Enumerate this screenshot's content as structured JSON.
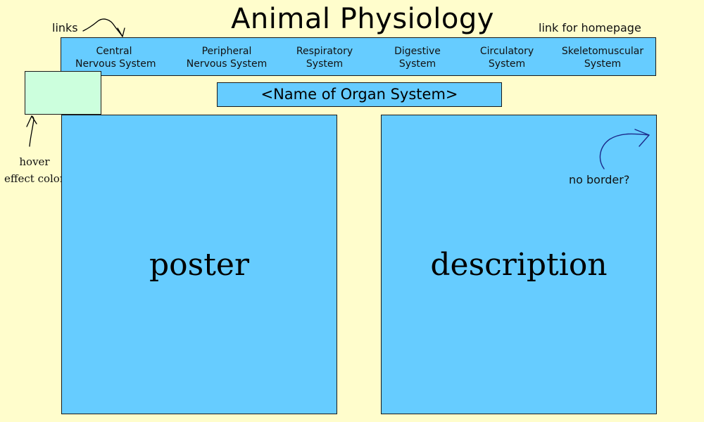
{
  "header": {
    "title": "Animal Physiology"
  },
  "annotations": {
    "links": "links",
    "homepage": "link for homepage",
    "hover_line1": "hover",
    "hover_line2": "effect color",
    "no_border": "no border?"
  },
  "nav": {
    "items": [
      {
        "line1": "Central",
        "line2": "Nervous System"
      },
      {
        "line1": "Peripheral",
        "line2": "Nervous System"
      },
      {
        "line1": "Respiratory",
        "line2": "System"
      },
      {
        "line1": "Digestive",
        "line2": "System"
      },
      {
        "line1": "Circulatory",
        "line2": "System"
      },
      {
        "line1": "Skeletomuscular",
        "line2": "System"
      }
    ]
  },
  "main": {
    "organ_system_placeholder": "<Name of Organ System>",
    "poster_label": "poster",
    "description_label": "description"
  },
  "colors": {
    "background": "#fffdcc",
    "panel": "#66ccff",
    "hover": "#ccffdd"
  },
  "icons": [
    "curved-arrow-icon"
  ]
}
